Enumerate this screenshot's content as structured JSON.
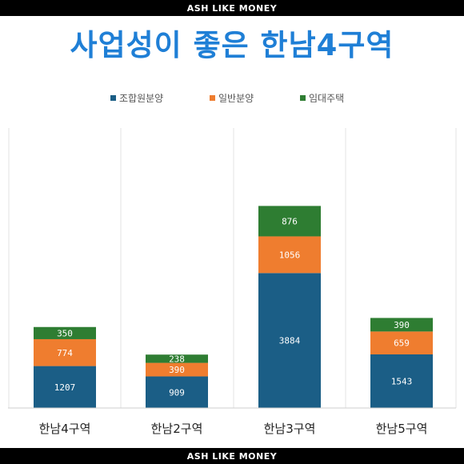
{
  "header": {
    "brand": "ASH LIKE MONEY",
    "title": "사업성이 좋은 한남4구역"
  },
  "footer": {
    "brand": "ASH LIKE MONEY"
  },
  "colors": {
    "series1": "#1b5e86",
    "series2": "#ef7d2f",
    "series3": "#2e7d32",
    "title": "#1f7fd6"
  },
  "chart_data": {
    "type": "bar",
    "stacked": true,
    "categories": [
      "한남4구역",
      "한남2구역",
      "한남3구역",
      "한남5구역"
    ],
    "series": [
      {
        "name": "조합원분양",
        "values": [
          1207,
          909,
          3884,
          1543
        ],
        "color": "#1b5e86"
      },
      {
        "name": "일반분양",
        "values": [
          774,
          390,
          1056,
          659
        ],
        "color": "#ef7d2f"
      },
      {
        "name": "임대주택",
        "values": [
          350,
          238,
          876,
          390
        ],
        "color": "#2e7d32"
      }
    ],
    "ylim": [
      0,
      7000
    ],
    "legend_position": "top",
    "grid": false
  }
}
